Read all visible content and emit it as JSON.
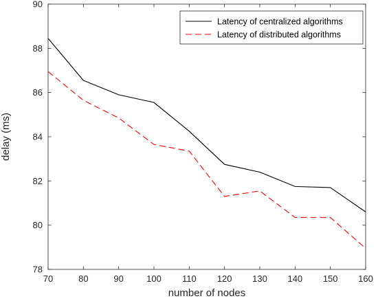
{
  "chart_data": {
    "type": "line",
    "xlabel": "number of nodes",
    "ylabel": "delay (ms)",
    "xlim": [
      70,
      160
    ],
    "ylim": [
      78,
      90
    ],
    "xticks": [
      "70",
      "80",
      "90",
      "100",
      "110",
      "120",
      "130",
      "140",
      "150",
      "160"
    ],
    "yticks": [
      "78",
      "80",
      "82",
      "84",
      "86",
      "88",
      "90"
    ],
    "grid": false,
    "legend_position": "top-right",
    "x": [
      70,
      80,
      90,
      100,
      110,
      120,
      130,
      140,
      150,
      160
    ],
    "series": [
      {
        "name": "Latency of centralized algorithms",
        "color": "#000000",
        "style": "solid",
        "values": [
          88.45,
          86.55,
          85.9,
          85.55,
          84.25,
          82.75,
          82.4,
          81.75,
          81.7,
          80.6
        ]
      },
      {
        "name": "Latency of distributed algorithms",
        "color": "#ff0000",
        "style": "dashed",
        "values": [
          86.95,
          85.65,
          84.85,
          83.65,
          83.35,
          81.3,
          81.55,
          80.35,
          80.35,
          78.95
        ]
      }
    ]
  }
}
